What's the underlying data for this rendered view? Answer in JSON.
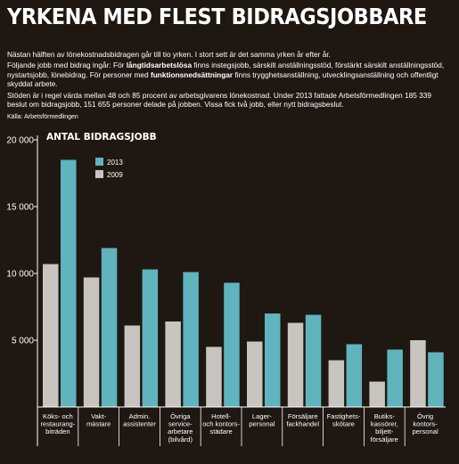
{
  "header": {
    "title": "YRKENA MED FLEST BIDRAGSJOBBARE",
    "lead": "Nästan hälften av lönekostnadsbidragen går till tio yrken. I stort sett är det samma yrken år efter år.",
    "p2_a": "Följande jobb med bidrag ingår: För ",
    "p2_b": "långtidsarbetslösa",
    "p2_c": " finns instegsjobb, särskilt anställningsstöd, förstärkt särskilt anställningsstöd, nystartsjobb, lönebidrag. För personer med ",
    "p2_d": "funktionsnedsättningar",
    "p2_e": " finns trygghetsanställning, utvecklingsanställning och offentligt skyddat arbete.",
    "p3": "Stöden är i regel värda mellan 48 och 85 procent av arbetsgivarens lönekostnad. Under 2013 fattade Arbetsförmedlingen 185 339 beslut om bidragsjobb, 151 655 personer delade på jobben. Vissa fick två jobb, eller nytt bidragsbeslut.",
    "source": "Källa: Arbetsförmedlingen"
  },
  "colors": {
    "background": "#1f1712",
    "s2009": "#c8c4c0",
    "s2013": "#5fb4be",
    "axis": "#ffffff"
  },
  "chart_data": {
    "type": "bar",
    "unit_label": "ANTAL BIDRAGSJOBB",
    "ylim": [
      0,
      20000
    ],
    "yticks": [
      5000,
      10000,
      15000,
      20000
    ],
    "ytick_labels": [
      "5 000",
      "10 000",
      "15 000",
      "20 000"
    ],
    "legend": [
      "2013",
      "2009"
    ],
    "categories": [
      [
        "Köks- och",
        "restaurang-",
        "biträden"
      ],
      [
        "Vakt-",
        "mästare"
      ],
      [
        "Admin.",
        "assistenter"
      ],
      [
        "Övriga",
        "service-",
        "arbetare",
        "(bilvård)"
      ],
      [
        "Hotell-",
        "och kontors-",
        "städare"
      ],
      [
        "Lager-",
        "personal"
      ],
      [
        "Försäljare",
        "fackhandel"
      ],
      [
        "Fastighets-",
        "skötare"
      ],
      [
        "Butiks-",
        "kassörer,",
        "biljett-",
        "försäljare"
      ],
      [
        "Övrig",
        "kontors-",
        "personal"
      ]
    ],
    "series": [
      {
        "name": "2009",
        "values": [
          10700,
          9700,
          6100,
          6400,
          4500,
          4900,
          6300,
          3500,
          1900,
          5000
        ]
      },
      {
        "name": "2013",
        "values": [
          18500,
          11900,
          10300,
          10100,
          9300,
          7000,
          6900,
          4700,
          4300,
          4100
        ]
      }
    ]
  }
}
